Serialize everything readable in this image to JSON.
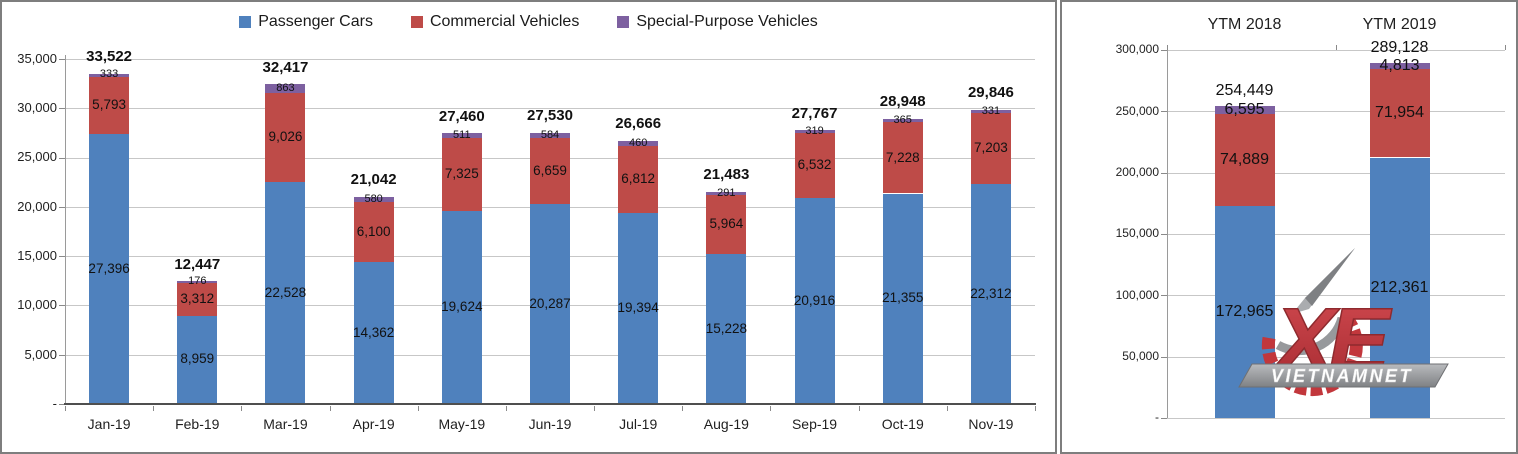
{
  "legend": {
    "items": [
      {
        "label": "Passenger Cars",
        "color": "#4F81BD"
      },
      {
        "label": "Commercial Vehicles",
        "color": "#BE4B48"
      },
      {
        "label": "Special-Purpose Vehicles",
        "color": "#7D60A0"
      }
    ]
  },
  "watermark": {
    "brand": "XE",
    "site": "VIETNAMNET"
  },
  "colors": {
    "passenger": "#4F81BD",
    "commercial": "#BE4B48",
    "special": "#7D60A0",
    "gridline": "#C7C7C7",
    "axis": "#9A9A9A",
    "text": "#1A1A1A"
  },
  "chart_data": [
    {
      "type": "bar",
      "stacked": true,
      "title": "",
      "categories": [
        "Jan-19",
        "Feb-19",
        "Mar-19",
        "Apr-19",
        "May-19",
        "Jun-19",
        "Jul-19",
        "Aug-19",
        "Sep-19",
        "Oct-19",
        "Nov-19"
      ],
      "series": [
        {
          "name": "Passenger Cars",
          "color": "#4F81BD",
          "values": [
            27396,
            8959,
            22528,
            14362,
            19624,
            20287,
            19394,
            15228,
            20916,
            21355,
            22312
          ]
        },
        {
          "name": "Commercial Vehicles",
          "color": "#BE4B48",
          "values": [
            5793,
            3312,
            9026,
            6100,
            7325,
            6659,
            6812,
            5964,
            6532,
            7228,
            7203
          ]
        },
        {
          "name": "Special-Purpose Vehicles",
          "color": "#7D60A0",
          "values": [
            333,
            176,
            863,
            580,
            511,
            584,
            460,
            291,
            319,
            365,
            331
          ]
        }
      ],
      "totals": [
        33522,
        12447,
        32417,
        21042,
        27460,
        27530,
        26666,
        21483,
        27767,
        28948,
        29846
      ],
      "xlabel": "",
      "ylabel": "",
      "ylim": [
        0,
        35000
      ],
      "ytick_step": 5000,
      "ytick_labels": [
        "35,000",
        "30,000",
        "25,000",
        "20,000",
        "15,000",
        "10,000",
        "5,000",
        "-"
      ],
      "grid": true,
      "legend_position": "top",
      "category_axis_position": "bottom"
    },
    {
      "type": "bar",
      "stacked": true,
      "title": "",
      "categories": [
        "YTM 2018",
        "YTM 2019"
      ],
      "series": [
        {
          "name": "Passenger Cars",
          "color": "#4F81BD",
          "values": [
            172965,
            212361
          ]
        },
        {
          "name": "Commercial Vehicles",
          "color": "#BE4B48",
          "values": [
            74889,
            71954
          ]
        },
        {
          "name": "Special-Purpose Vehicles",
          "color": "#7D60A0",
          "values": [
            6595,
            4813
          ]
        }
      ],
      "totals": [
        254449,
        289128
      ],
      "xlabel": "",
      "ylabel": "",
      "ylim": [
        0,
        300000
      ],
      "ytick_step": 50000,
      "ytick_labels": [
        "300,000",
        "250,000",
        "200,000",
        "150,000",
        "100,000",
        "50,000",
        "-"
      ],
      "grid": true,
      "legend_position": "none",
      "category_axis_position": "top"
    }
  ]
}
